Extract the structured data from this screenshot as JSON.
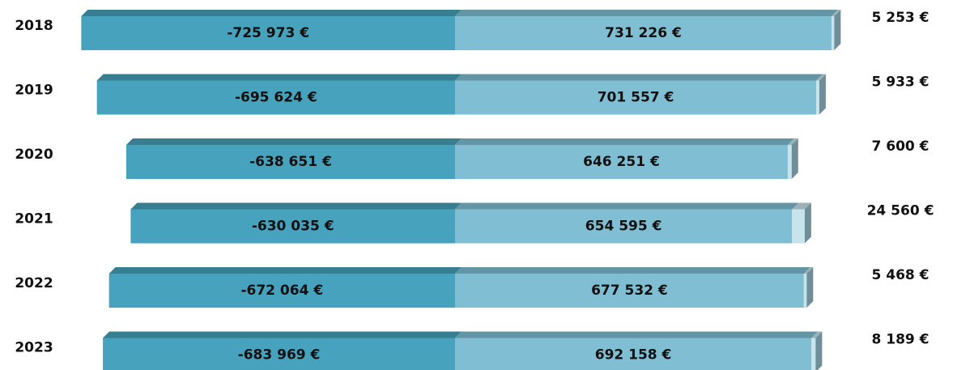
{
  "chart_data": {
    "type": "bar",
    "categories": [
      "2018",
      "2019",
      "2020",
      "2021",
      "2022",
      "2023"
    ],
    "xlim": [
      -758000,
      758000
    ],
    "series": [
      {
        "name": null,
        "color": "#47a2bd",
        "values": [
          -725973,
          -695624,
          -638651,
          -630035,
          -672064,
          -683969
        ],
        "value_labels": [
          "-725 973 €",
          "-695 624 €",
          "-638 651 €",
          "-630 035 €",
          "-672 064 €",
          "-683 969 €"
        ]
      },
      {
        "name": null,
        "color": "#80bfd3",
        "values": [
          731226,
          701557,
          646251,
          654595,
          677532,
          692158
        ],
        "value_labels": [
          "731 226 €",
          "701 557 €",
          "646 251 €",
          "654 595 €",
          "677 532 €",
          "692 158 €"
        ]
      },
      {
        "name": null,
        "color": "#c7e4ec",
        "values": [
          5253,
          5933,
          7600,
          24560,
          5468,
          8189
        ],
        "value_labels": [
          "5 253 €",
          "5 933 €",
          "7 600 €",
          "24 560 €",
          "5 468 €",
          "8 189 €"
        ]
      }
    ]
  }
}
